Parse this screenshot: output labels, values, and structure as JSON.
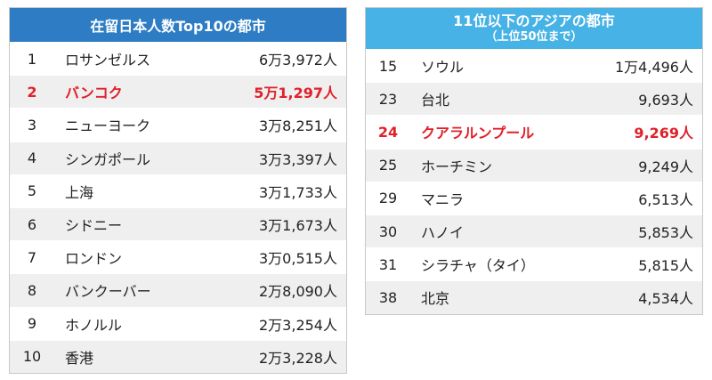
{
  "left": {
    "title": "在留日本人数Top10の都市",
    "rows": [
      [
        "1",
        "ロサンゼルス",
        "6万3,972人"
      ],
      [
        "2",
        "バンコク",
        "5万1,297人"
      ],
      [
        "3",
        "ニューヨーク",
        "3万8,251人"
      ],
      [
        "4",
        "シンガポール",
        "3万3,397人"
      ],
      [
        "5",
        "上海",
        "3万1,733人"
      ],
      [
        "6",
        "シドニー",
        "3万1,673人"
      ],
      [
        "7",
        "ロンドン",
        "3万0,515人"
      ],
      [
        "8",
        "バンクーバー",
        "2万8,090人"
      ],
      [
        "9",
        "ホノルル",
        "2万3,254人"
      ],
      [
        "10",
        "香港",
        "2万3,228人"
      ]
    ]
  },
  "right": {
    "title": "11位以下のアジアの都市",
    "subtitle": "（上位50位まで）",
    "rows": [
      [
        "15",
        "ソウル",
        "1万4,496人"
      ],
      [
        "23",
        "台北",
        "9,693人"
      ],
      [
        "24",
        "クアラルンプール",
        "9,269人"
      ],
      [
        "25",
        "ホーチミン",
        "9,249人"
      ],
      [
        "29",
        "マニラ",
        "6,513人"
      ],
      [
        "30",
        "ハノイ",
        "5,853人"
      ],
      [
        "31",
        "シラチャ（タイ）",
        "5,815人"
      ],
      [
        "38",
        "北京",
        "4,534人"
      ]
    ]
  }
}
